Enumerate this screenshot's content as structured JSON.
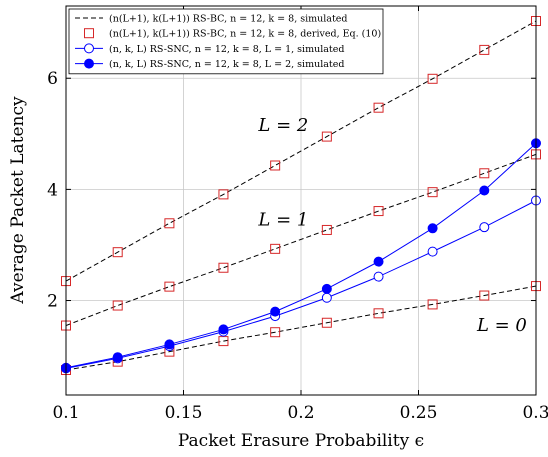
{
  "chart_data": {
    "type": "line",
    "xlabel": "Packet Erasure Probability ϵ",
    "ylabel": "Average Packet Latency",
    "xlim": [
      0.1,
      0.3
    ],
    "ylim": [
      0.3,
      7.3
    ],
    "xticks": [
      0.1,
      0.15,
      0.2,
      0.25,
      0.3
    ],
    "xtick_labels": [
      "0.1",
      "0.15",
      "0.2",
      "0.25",
      "0.3"
    ],
    "yticks": [
      2,
      4,
      6
    ],
    "ytick_labels": [
      "2",
      "4",
      "6"
    ],
    "grid": true,
    "legend_position": "top-left",
    "colors": {
      "bc": "#000000",
      "derived": "#d62728",
      "snc": "#0000ff"
    },
    "x": [
      0.1,
      0.122,
      0.144,
      0.167,
      0.189,
      0.211,
      0.233,
      0.256,
      0.278,
      0.3
    ],
    "series": [
      {
        "name": "(n(L+1), k(L+1)) RS-BC, n = 12, k = 8, simulated",
        "group": "L=0",
        "style": "dashed",
        "values": [
          0.75,
          0.9,
          1.08,
          1.27,
          1.43,
          1.6,
          1.77,
          1.93,
          2.09,
          2.26
        ]
      },
      {
        "name": "",
        "group": "L=1",
        "style": "dashed",
        "values": [
          1.55,
          1.91,
          2.25,
          2.59,
          2.93,
          3.27,
          3.61,
          3.95,
          4.29,
          4.63
        ]
      },
      {
        "name": "",
        "group": "L=2",
        "style": "dashed",
        "values": [
          2.35,
          2.87,
          3.39,
          3.91,
          4.43,
          4.95,
          5.47,
          5.99,
          6.51,
          7.03
        ]
      },
      {
        "name": "(n(L+1), k(L+1)) RS-BC, n = 12, k = 8, derived, Eq. (10)",
        "group": "derived",
        "style": "square",
        "points": [
          [
            0.1,
            0.75
          ],
          [
            0.122,
            0.9
          ],
          [
            0.144,
            1.08
          ],
          [
            0.167,
            1.27
          ],
          [
            0.189,
            1.43
          ],
          [
            0.211,
            1.6
          ],
          [
            0.233,
            1.77
          ],
          [
            0.256,
            1.93
          ],
          [
            0.278,
            2.09
          ],
          [
            0.3,
            2.26
          ],
          [
            0.1,
            1.55
          ],
          [
            0.122,
            1.91
          ],
          [
            0.144,
            2.25
          ],
          [
            0.167,
            2.59
          ],
          [
            0.189,
            2.93
          ],
          [
            0.211,
            3.27
          ],
          [
            0.233,
            3.61
          ],
          [
            0.256,
            3.95
          ],
          [
            0.278,
            4.29
          ],
          [
            0.3,
            4.63
          ],
          [
            0.1,
            2.35
          ],
          [
            0.122,
            2.87
          ],
          [
            0.144,
            3.39
          ],
          [
            0.167,
            3.91
          ],
          [
            0.189,
            4.43
          ],
          [
            0.211,
            4.95
          ],
          [
            0.233,
            5.47
          ],
          [
            0.256,
            5.99
          ],
          [
            0.278,
            6.51
          ],
          [
            0.3,
            7.03
          ]
        ]
      },
      {
        "name": "(n, k, L) RS-SNC, n = 12, k = 8, L = 1, simulated",
        "group": "snc1",
        "style": "open-circle",
        "values": [
          0.78,
          0.96,
          1.18,
          1.44,
          1.72,
          2.05,
          2.43,
          2.88,
          3.32,
          3.8
        ]
      },
      {
        "name": "(n, k, L) RS-SNC, n = 12, k = 8, L = 2, simulated",
        "group": "snc2",
        "style": "filled-circle",
        "values": [
          0.79,
          0.98,
          1.21,
          1.48,
          1.8,
          2.21,
          2.7,
          3.3,
          3.98,
          4.83
        ]
      }
    ],
    "annotations": [
      {
        "text": "L = 2",
        "x": 0.1925,
        "y": 5.05
      },
      {
        "text": "L = 1",
        "x": 0.1925,
        "y": 3.35
      },
      {
        "text": "L = 0",
        "x": 0.2855,
        "y": 1.45
      }
    ]
  }
}
